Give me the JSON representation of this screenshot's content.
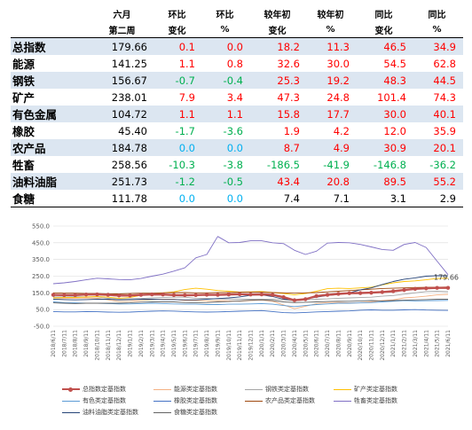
{
  "table": {
    "headers": [
      {
        "line1": "",
        "line2": ""
      },
      {
        "line1": "六月",
        "line2": "第二周"
      },
      {
        "line1": "环比",
        "line2": "变化"
      },
      {
        "line1": "环比",
        "line2": "%"
      },
      {
        "line1": "较年初",
        "line2": "变化"
      },
      {
        "line1": "较年初",
        "line2": "%"
      },
      {
        "line1": "同比",
        "line2": "变化"
      },
      {
        "line1": "同比",
        "line2": "%"
      }
    ],
    "rows": [
      {
        "name": "总指数",
        "value": "179.66",
        "wow_chg": "0.1",
        "wow_pct": "0.0",
        "ytd_chg": "18.2",
        "ytd_pct": "11.3",
        "yoy_chg": "46.5",
        "yoy_pct": "34.9",
        "colors": [
          "red",
          "red",
          "red",
          "red",
          "red",
          "red"
        ]
      },
      {
        "name": "能源",
        "value": "141.25",
        "wow_chg": "1.1",
        "wow_pct": "0.8",
        "ytd_chg": "32.6",
        "ytd_pct": "30.0",
        "yoy_chg": "54.5",
        "yoy_pct": "62.8",
        "colors": [
          "red",
          "red",
          "red",
          "red",
          "red",
          "red"
        ]
      },
      {
        "name": "钢铁",
        "value": "156.67",
        "wow_chg": "-0.7",
        "wow_pct": "-0.4",
        "ytd_chg": "25.3",
        "ytd_pct": "19.2",
        "yoy_chg": "48.3",
        "yoy_pct": "44.5",
        "colors": [
          "green",
          "green",
          "red",
          "red",
          "red",
          "red"
        ]
      },
      {
        "name": "矿产",
        "value": "238.01",
        "wow_chg": "7.9",
        "wow_pct": "3.4",
        "ytd_chg": "47.3",
        "ytd_pct": "24.8",
        "yoy_chg": "101.4",
        "yoy_pct": "74.3",
        "colors": [
          "red",
          "red",
          "red",
          "red",
          "red",
          "red"
        ]
      },
      {
        "name": "有色金属",
        "value": "104.72",
        "wow_chg": "1.1",
        "wow_pct": "1.1",
        "ytd_chg": "15.8",
        "ytd_pct": "17.7",
        "yoy_chg": "30.0",
        "yoy_pct": "40.1",
        "colors": [
          "red",
          "red",
          "red",
          "red",
          "red",
          "red"
        ]
      },
      {
        "name": "橡胶",
        "value": "45.40",
        "wow_chg": "-1.7",
        "wow_pct": "-3.6",
        "ytd_chg": "1.9",
        "ytd_pct": "4.2",
        "yoy_chg": "12.0",
        "yoy_pct": "35.9",
        "colors": [
          "green",
          "green",
          "red",
          "red",
          "red",
          "red"
        ]
      },
      {
        "name": "农产品",
        "value": "184.78",
        "wow_chg": "0.0",
        "wow_pct": "0.0",
        "ytd_chg": "8.7",
        "ytd_pct": "4.9",
        "yoy_chg": "30.9",
        "yoy_pct": "20.1",
        "colors": [
          "teal",
          "teal",
          "red",
          "red",
          "red",
          "red"
        ]
      },
      {
        "name": "牲畜",
        "value": "258.56",
        "wow_chg": "-10.3",
        "wow_pct": "-3.8",
        "ytd_chg": "-186.5",
        "ytd_pct": "-41.9",
        "yoy_chg": "-146.8",
        "yoy_pct": "-36.2",
        "colors": [
          "green",
          "green",
          "green",
          "green",
          "green",
          "green"
        ]
      },
      {
        "name": "油料油脂",
        "value": "251.73",
        "wow_chg": "-1.2",
        "wow_pct": "-0.5",
        "ytd_chg": "43.4",
        "ytd_pct": "20.8",
        "yoy_chg": "89.5",
        "yoy_pct": "55.2",
        "colors": [
          "green",
          "green",
          "red",
          "red",
          "red",
          "red"
        ]
      },
      {
        "name": "食糖",
        "value": "111.78",
        "wow_chg": "0.0",
        "wow_pct": "0.0",
        "ytd_chg": "7.4",
        "ytd_pct": "7.1",
        "yoy_chg": "3.1",
        "yoy_pct": "2.9",
        "colors": [
          "teal",
          "teal",
          "black",
          "black",
          "black",
          "black"
        ]
      }
    ]
  },
  "chart_data": {
    "type": "line",
    "ylim": [
      -50,
      550
    ],
    "yticks": [
      "-50.0",
      "50.0",
      "150.0",
      "250.0",
      "350.0",
      "450.0",
      "550.0"
    ],
    "ytick_values": [
      -50,
      50,
      150,
      250,
      350,
      450,
      550
    ],
    "x": [
      "2018/6/11",
      "2018/7/11",
      "2018/8/11",
      "2018/9/11",
      "2018/10/11",
      "2018/11/11",
      "2018/12/11",
      "2019/1/11",
      "2019/2/11",
      "2019/3/11",
      "2019/4/11",
      "2019/5/11",
      "2019/6/11",
      "2019/7/11",
      "2019/8/11",
      "2019/9/11",
      "2019/10/11",
      "2019/11/11",
      "2019/12/11",
      "2020/1/11",
      "2020/2/11",
      "2020/3/11",
      "2020/4/11",
      "2020/5/11",
      "2020/6/11",
      "2020/7/11",
      "2020/8/11",
      "2020/9/11",
      "2020/10/11",
      "2020/11/11",
      "2020/12/11",
      "2021/1/11",
      "2021/2/11",
      "2021/3/11",
      "2021/4/11",
      "2021/5/11",
      "2021/6/11"
    ],
    "end_label": "179.66",
    "series": [
      {
        "name": "总指数定基指数",
        "color": "#c0504d",
        "width": 2.4,
        "markers": true,
        "values": [
          138,
          137,
          137,
          140,
          141,
          138,
          134,
          134,
          138,
          141,
          140,
          137,
          136,
          137,
          139,
          138,
          140,
          142,
          140,
          141,
          138,
          124,
          106,
          112,
          131,
          138,
          144,
          148,
          149,
          151,
          155,
          160,
          167,
          174,
          177,
          180,
          180
        ]
      },
      {
        "name": "能源类定基指数",
        "color": "#f4b183",
        "width": 0.9,
        "values": [
          112,
          116,
          118,
          120,
          118,
          108,
          98,
          100,
          104,
          108,
          112,
          112,
          104,
          104,
          102,
          104,
          102,
          100,
          104,
          106,
          100,
          78,
          55,
          70,
          86,
          92,
          94,
          90,
          92,
          96,
          104,
          108,
          120,
          124,
          130,
          138,
          141
        ]
      },
      {
        "name": "钢铁类定基指数",
        "color": "#a5a5a5",
        "width": 0.9,
        "values": [
          125,
          126,
          127,
          126,
          126,
          118,
          112,
          114,
          116,
          120,
          122,
          124,
          124,
          118,
          116,
          114,
          113,
          112,
          112,
          112,
          112,
          108,
          102,
          108,
          112,
          114,
          118,
          120,
          122,
          124,
          130,
          134,
          142,
          150,
          158,
          160,
          157
        ]
      },
      {
        "name": "矿产类定基指数",
        "color": "#ffc000",
        "width": 0.9,
        "values": [
          120,
          122,
          122,
          126,
          128,
          124,
          118,
          122,
          136,
          145,
          150,
          156,
          170,
          178,
          172,
          164,
          160,
          155,
          156,
          158,
          152,
          146,
          138,
          146,
          160,
          175,
          178,
          176,
          180,
          184,
          198,
          210,
          218,
          222,
          228,
          236,
          238
        ]
      },
      {
        "name": "有色类定基指数",
        "color": "#5b9bd5",
        "width": 0.9,
        "values": [
          96,
          92,
          90,
          88,
          88,
          86,
          84,
          84,
          86,
          88,
          86,
          84,
          82,
          82,
          80,
          80,
          82,
          82,
          84,
          86,
          82,
          74,
          68,
          74,
          80,
          84,
          88,
          88,
          90,
          92,
          96,
          100,
          104,
          102,
          103,
          104,
          105
        ]
      },
      {
        "name": "橡胶类定基指数",
        "color": "#4472c4",
        "width": 0.9,
        "values": [
          38,
          36,
          36,
          38,
          37,
          35,
          34,
          35,
          38,
          40,
          42,
          41,
          38,
          36,
          35,
          36,
          38,
          40,
          42,
          44,
          38,
          32,
          30,
          33,
          36,
          38,
          40,
          42,
          46,
          48,
          46,
          46,
          48,
          50,
          47,
          46,
          45
        ]
      },
      {
        "name": "农产品类定基指数",
        "color": "#9e480e",
        "width": 0.9,
        "values": [
          150,
          148,
          148,
          146,
          146,
          144,
          144,
          146,
          148,
          148,
          150,
          152,
          152,
          150,
          150,
          152,
          152,
          154,
          154,
          154,
          152,
          150,
          148,
          150,
          152,
          156,
          160,
          164,
          168,
          172,
          176,
          178,
          180,
          182,
          183,
          184,
          185
        ]
      },
      {
        "name": "牲畜类定基指数",
        "color": "#7f6fc4",
        "width": 0.9,
        "values": [
          205,
          210,
          218,
          228,
          238,
          234,
          230,
          228,
          236,
          250,
          262,
          280,
          300,
          360,
          380,
          488,
          450,
          452,
          462,
          462,
          450,
          445,
          405,
          380,
          400,
          448,
          452,
          450,
          440,
          425,
          410,
          405,
          440,
          452,
          422,
          340,
          259
        ]
      },
      {
        "name": "油料油脂类定基指数",
        "color": "#264478",
        "width": 0.9,
        "values": [
          112,
          110,
          108,
          110,
          112,
          112,
          108,
          110,
          112,
          112,
          110,
          110,
          108,
          108,
          112,
          116,
          120,
          126,
          136,
          138,
          128,
          112,
          108,
          114,
          124,
          134,
          140,
          150,
          168,
          180,
          200,
          218,
          232,
          240,
          250,
          253,
          252
        ]
      },
      {
        "name": "食糖类定基指数",
        "color": "#636363",
        "width": 0.9,
        "values": [
          90,
          88,
          86,
          88,
          88,
          88,
          88,
          90,
          94,
          96,
          96,
          96,
          92,
          90,
          92,
          96,
          98,
          102,
          106,
          108,
          104,
          96,
          92,
          94,
          96,
          98,
          100,
          100,
          102,
          104,
          102,
          104,
          106,
          108,
          110,
          112,
          112
        ]
      }
    ]
  }
}
